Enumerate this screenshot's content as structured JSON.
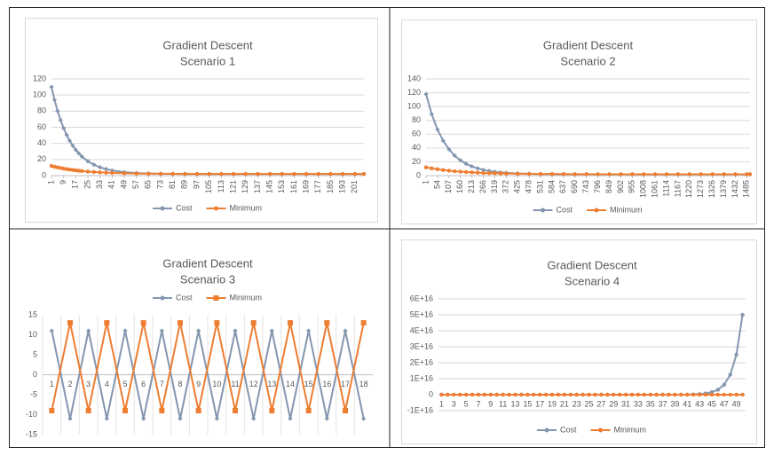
{
  "chart_data": [
    {
      "type": "line",
      "title": "Gradient Descent",
      "subtitle": "Scenario 1",
      "legend": "bottom",
      "grid": true,
      "x": [
        1,
        3,
        5,
        7,
        9,
        11,
        13,
        15,
        17,
        19,
        21,
        25,
        29,
        33,
        37,
        41,
        49,
        57,
        65,
        73,
        81,
        89,
        97,
        105,
        113,
        121,
        129,
        137,
        145,
        153,
        161,
        169,
        177,
        185,
        193,
        201,
        207
      ],
      "xlim": [
        1,
        207
      ],
      "xticks": [
        1,
        9,
        17,
        25,
        33,
        41,
        49,
        57,
        65,
        73,
        81,
        89,
        97,
        105,
        113,
        121,
        129,
        137,
        145,
        153,
        161,
        169,
        177,
        185,
        193,
        201
      ],
      "ylim": [
        0,
        120
      ],
      "yticks": [
        0,
        20,
        40,
        60,
        80,
        100,
        120
      ],
      "series": [
        {
          "name": "Cost",
          "color": "#8496b0",
          "marker": "diamond",
          "values": [
            110,
            94.0,
            80.4,
            68.8,
            58.9,
            50.5,
            43.3,
            37.2,
            32.0,
            27.6,
            23.8,
            17.9,
            13.5,
            10.3,
            8.1,
            6.4,
            4.3,
            3.2,
            2.6,
            2.3,
            2.2,
            2.1,
            2,
            2,
            2,
            2,
            2,
            2,
            2,
            2,
            2,
            2,
            2,
            2,
            2,
            2,
            2
          ]
        },
        {
          "name": "Minimum",
          "color": "#ed7d31",
          "marker": "circle",
          "values": [
            12,
            11.0,
            10.2,
            9.4,
            8.7,
            8.1,
            7.5,
            7.0,
            6.5,
            6.1,
            5.7,
            5.0,
            4.5,
            4.0,
            3.7,
            3.4,
            2.9,
            2.6,
            2.4,
            2.3,
            2.2,
            2.1,
            2.1,
            2,
            2,
            2,
            2,
            2,
            2,
            2,
            2,
            2,
            2,
            2,
            2,
            2,
            2
          ]
        }
      ]
    },
    {
      "type": "line",
      "title": "Gradient Descent",
      "subtitle": "Scenario 2",
      "legend": "bottom",
      "grid": true,
      "x": [
        1,
        27,
        54,
        80,
        107,
        133,
        160,
        186,
        213,
        240,
        266,
        293,
        319,
        346,
        372,
        425,
        478,
        531,
        584,
        637,
        690,
        743,
        796,
        849,
        902,
        955,
        1008,
        1061,
        1114,
        1167,
        1220,
        1273,
        1326,
        1379,
        1432,
        1485,
        1500
      ],
      "xlim": [
        1,
        1500
      ],
      "xticks": [
        1,
        54,
        107,
        160,
        213,
        266,
        319,
        372,
        425,
        478,
        531,
        584,
        637,
        690,
        743,
        796,
        849,
        902,
        955,
        1008,
        1061,
        1114,
        1167,
        1220,
        1273,
        1326,
        1379,
        1432,
        1485
      ],
      "ylim": [
        0,
        140
      ],
      "yticks": [
        0,
        20,
        40,
        60,
        80,
        100,
        120,
        140
      ],
      "series": [
        {
          "name": "Cost",
          "color": "#8496b0",
          "marker": "diamond",
          "values": [
            118,
            89.1,
            66.7,
            50.6,
            38.2,
            29.1,
            22.2,
            17.2,
            13.3,
            10.4,
            8.3,
            6.7,
            5.5,
            4.6,
            4.0,
            3.1,
            2.6,
            2.3,
            2.2,
            2.1,
            2,
            2,
            2,
            2,
            2,
            2,
            2,
            2,
            2,
            2,
            2,
            2,
            2,
            2,
            2,
            2,
            2
          ]
        },
        {
          "name": "Minimum",
          "color": "#ed7d31",
          "marker": "circle",
          "values": [
            12,
            10.5,
            9.2,
            8.1,
            7.2,
            6.4,
            5.7,
            5.2,
            4.7,
            4.3,
            3.9,
            3.6,
            3.4,
            3.2,
            3.0,
            2.7,
            2.5,
            2.4,
            2.3,
            2.2,
            2.1,
            2.1,
            2,
            2,
            2,
            2,
            2,
            2,
            2,
            2,
            2,
            2,
            2,
            2,
            2,
            2,
            2
          ]
        }
      ]
    },
    {
      "type": "line",
      "title": "Gradient Descent",
      "subtitle": "Scenario 3",
      "legend": "top",
      "grid": false,
      "categories": [
        1,
        2,
        3,
        4,
        5,
        6,
        7,
        8,
        9,
        10,
        11,
        12,
        13,
        14,
        15,
        16,
        17,
        18
      ],
      "ylim": [
        -15,
        15
      ],
      "yticks": [
        -15,
        -10,
        -5,
        0,
        5,
        10,
        15
      ],
      "series": [
        {
          "name": "Cost",
          "color": "#8496b0",
          "marker": "diamond",
          "values": [
            11,
            -11,
            11,
            -11,
            11,
            -11,
            11,
            -11,
            11,
            -11,
            11,
            -11,
            11,
            -11,
            11,
            -11,
            11,
            -11
          ]
        },
        {
          "name": "Minimum",
          "color": "#ed7d31",
          "marker": "square",
          "values": [
            -9,
            13,
            -9,
            13,
            -9,
            13,
            -9,
            13,
            -9,
            13,
            -9,
            13,
            -9,
            13,
            -9,
            13,
            -9,
            13
          ]
        }
      ]
    },
    {
      "type": "line",
      "title": "Gradient Descent",
      "subtitle": "Scenario 4",
      "legend": "bottom",
      "grid": true,
      "categories": [
        1,
        null,
        3,
        null,
        5,
        null,
        7,
        null,
        9,
        null,
        11,
        null,
        13,
        null,
        15,
        null,
        17,
        null,
        19,
        null,
        21,
        null,
        23,
        null,
        25,
        null,
        27,
        null,
        29,
        null,
        31,
        null,
        33,
        null,
        35,
        null,
        37,
        null,
        39,
        null,
        41,
        null,
        43,
        null,
        45,
        null,
        47,
        null,
        49,
        null
      ],
      "ylim": [
        -1e+16,
        6e+16
      ],
      "yticks": [
        {
          "value": -1e+16,
          "label": "-1E+16"
        },
        0,
        {
          "value": 1e+16,
          "label": "1E+16"
        },
        {
          "value": 2e+16,
          "label": "2E+16"
        },
        {
          "value": 3e+16,
          "label": "3E+16"
        },
        {
          "value": 4e+16,
          "label": "4E+16"
        },
        {
          "value": 5e+16,
          "label": "5E+16"
        },
        {
          "value": 6e+16,
          "label": "6E+16"
        }
      ],
      "series": [
        {
          "name": "Cost",
          "color": "#8496b0",
          "marker": "circle",
          "values": [
            0,
            0,
            0,
            0,
            0,
            0,
            0,
            0,
            0,
            0,
            0,
            0,
            0,
            0,
            0,
            0,
            0,
            0,
            0,
            0,
            0,
            0,
            0,
            0,
            0,
            0,
            0,
            0,
            0,
            0,
            0,
            0,
            0,
            0,
            0,
            0,
            0,
            0,
            0,
            0,
            0,
            200000000000000.0,
            400000000000000.0,
            800000000000000.0,
            1600000000000000.0,
            3100000000000000.0,
            6200000000000000.0,
            1.25e+16,
            2.5e+16,
            5e+16
          ]
        },
        {
          "name": "Minimum",
          "color": "#ed7d31",
          "marker": "circle",
          "values": [
            0,
            0,
            0,
            0,
            0,
            0,
            0,
            0,
            0,
            0,
            0,
            0,
            0,
            0,
            0,
            0,
            0,
            0,
            0,
            0,
            0,
            0,
            0,
            0,
            0,
            0,
            0,
            0,
            0,
            0,
            0,
            0,
            0,
            0,
            0,
            0,
            0,
            0,
            0,
            0,
            0,
            0,
            0,
            0,
            0,
            0,
            0,
            0,
            0,
            0
          ]
        }
      ]
    }
  ]
}
